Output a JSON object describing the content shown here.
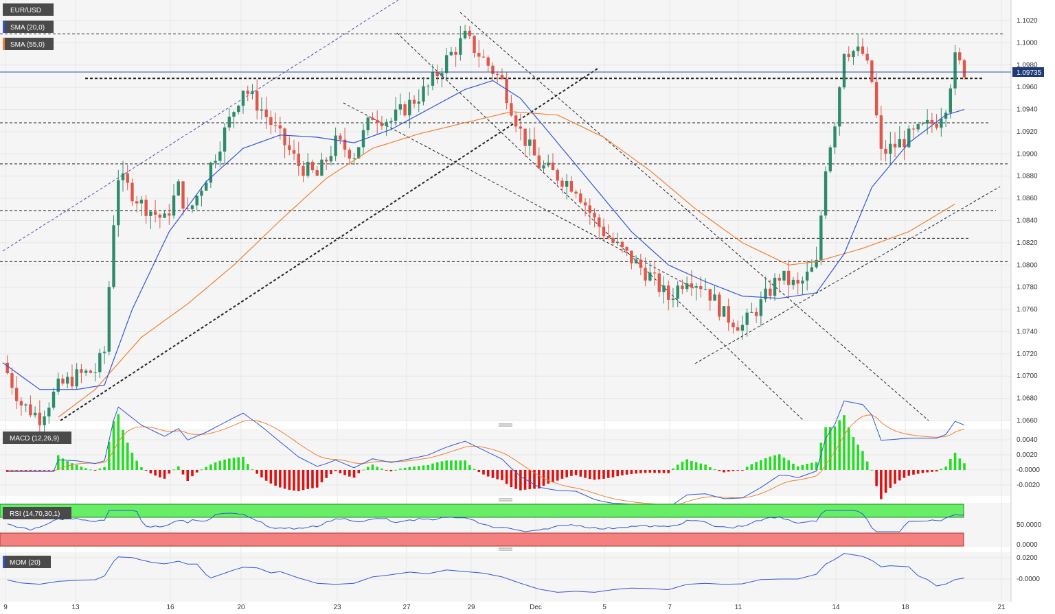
{
  "instrument": "EUR/USD",
  "colors": {
    "up": "#2e8b6a",
    "down": "#e0564a",
    "sma20": "#2f55d4",
    "sma55": "#f08030",
    "grid": "#e6e6e6",
    "panel_bg": "#f5f5f5",
    "tag_bg": "#4a4a4a"
  },
  "main_panel": {
    "indicators": [
      {
        "name": "SMA (20,0)",
        "color": "#2f55d4"
      },
      {
        "name": "SMA (55,0)",
        "color": "#f08030"
      }
    ],
    "price_axis": [
      "1.1020",
      "1.1000",
      "1.0980",
      "1.0960",
      "1.0940",
      "1.0920",
      "1.0900",
      "1.0880",
      "1.0860",
      "1.0840",
      "1.0820",
      "1.0800",
      "1.0780",
      "1.0760",
      "1.0740",
      "1.0720",
      "1.0700",
      "1.0680",
      "1.0660"
    ],
    "current_price": "1.09735"
  },
  "macd_panel": {
    "label": "MACD (12,26,9)",
    "axis": [
      "0.0040",
      "0.0020",
      "-0.0000",
      "-0.0020"
    ]
  },
  "rsi_panel": {
    "label": "RSI (14,70,30,1)",
    "axis": [
      "50.0000",
      "0.0000"
    ]
  },
  "mom_panel": {
    "label": "MOM (20)",
    "axis": [
      "0.0200",
      "-0.0000"
    ]
  },
  "x_axis": [
    "9",
    "13",
    "16",
    "20",
    "23",
    "27",
    "29",
    "Dec",
    "5",
    "7",
    "11",
    "14",
    "18",
    "21"
  ],
  "chart_data": {
    "type": "candlestick",
    "title": "EUR/USD",
    "ylim": [
      1.0658,
      1.1032
    ],
    "x": [
      "9",
      "13",
      "16",
      "20",
      "23",
      "27",
      "29",
      "Dec",
      "5",
      "7",
      "11",
      "14",
      "18",
      "21"
    ],
    "key_prices": [
      1.1008,
      1.0968,
      1.0928,
      1.0891,
      1.0849,
      1.0824,
      1.0803
    ],
    "close_path": [
      [
        0,
        1.0712
      ],
      [
        4,
        1.0675
      ],
      [
        8,
        1.0663
      ],
      [
        12,
        1.069
      ],
      [
        16,
        1.07
      ],
      [
        20,
        1.0705
      ],
      [
        22,
        1.0722
      ],
      [
        24,
        1.084
      ],
      [
        25,
        1.088
      ],
      [
        30,
        1.0855
      ],
      [
        35,
        1.084
      ],
      [
        38,
        1.087
      ],
      [
        40,
        1.0845
      ],
      [
        44,
        1.088
      ],
      [
        48,
        1.092
      ],
      [
        52,
        1.096
      ],
      [
        56,
        1.094
      ],
      [
        60,
        1.0915
      ],
      [
        64,
        1.089
      ],
      [
        68,
        1.088
      ],
      [
        72,
        1.091
      ],
      [
        76,
        1.09
      ],
      [
        80,
        1.0935
      ],
      [
        84,
        1.093
      ],
      [
        88,
        1.0945
      ],
      [
        92,
        1.096
      ],
      [
        96,
        1.0985
      ],
      [
        100,
        1.1005
      ],
      [
        104,
        1.0985
      ],
      [
        108,
        1.0965
      ],
      [
        112,
        1.092
      ],
      [
        116,
        1.089
      ],
      [
        120,
        1.088
      ],
      [
        124,
        1.087
      ],
      [
        128,
        1.084
      ],
      [
        132,
        1.082
      ],
      [
        136,
        1.0805
      ],
      [
        140,
        1.079
      ],
      [
        144,
        1.077
      ],
      [
        148,
        1.079
      ],
      [
        152,
        1.078
      ],
      [
        156,
        1.0755
      ],
      [
        160,
        1.0745
      ],
      [
        164,
        1.0765
      ],
      [
        168,
        1.079
      ],
      [
        172,
        1.078
      ],
      [
        176,
        1.08
      ],
      [
        178,
        1.089
      ],
      [
        180,
        1.093
      ],
      [
        182,
        1.0995
      ],
      [
        186,
        1.099
      ],
      [
        188,
        1.0965
      ],
      [
        190,
        1.09
      ],
      [
        194,
        1.091
      ],
      [
        198,
        1.092
      ],
      [
        202,
        1.093
      ],
      [
        204,
        1.0945
      ],
      [
        206,
        1.0985
      ],
      [
        208,
        1.0975
      ]
    ],
    "sma20_path": [
      [
        0,
        1.0712
      ],
      [
        8,
        1.0688
      ],
      [
        16,
        1.0688
      ],
      [
        22,
        1.0692
      ],
      [
        28,
        1.076
      ],
      [
        36,
        1.083
      ],
      [
        44,
        1.0875
      ],
      [
        52,
        1.0905
      ],
      [
        60,
        1.0917
      ],
      [
        68,
        1.0915
      ],
      [
        76,
        1.091
      ],
      [
        84,
        1.0922
      ],
      [
        92,
        1.094
      ],
      [
        100,
        1.0958
      ],
      [
        106,
        1.0966
      ],
      [
        112,
        1.095
      ],
      [
        120,
        1.091
      ],
      [
        128,
        1.087
      ],
      [
        136,
        1.083
      ],
      [
        144,
        1.08
      ],
      [
        152,
        1.0785
      ],
      [
        160,
        1.0772
      ],
      [
        168,
        1.077
      ],
      [
        176,
        1.0775
      ],
      [
        182,
        1.081
      ],
      [
        188,
        1.087
      ],
      [
        196,
        1.091
      ],
      [
        204,
        1.0935
      ],
      [
        208,
        1.094
      ]
    ],
    "sma55_path": [
      [
        12,
        1.0663
      ],
      [
        20,
        1.0688
      ],
      [
        30,
        1.0735
      ],
      [
        40,
        1.0765
      ],
      [
        50,
        1.08
      ],
      [
        60,
        1.084
      ],
      [
        70,
        1.0878
      ],
      [
        80,
        1.0905
      ],
      [
        90,
        1.0918
      ],
      [
        100,
        1.0928
      ],
      [
        110,
        1.0938
      ],
      [
        120,
        1.0935
      ],
      [
        130,
        1.0915
      ],
      [
        140,
        1.0885
      ],
      [
        150,
        1.085
      ],
      [
        160,
        1.082
      ],
      [
        170,
        1.08
      ],
      [
        176,
        1.0803
      ],
      [
        186,
        1.0815
      ],
      [
        196,
        1.083
      ],
      [
        206,
        1.0855
      ]
    ]
  }
}
